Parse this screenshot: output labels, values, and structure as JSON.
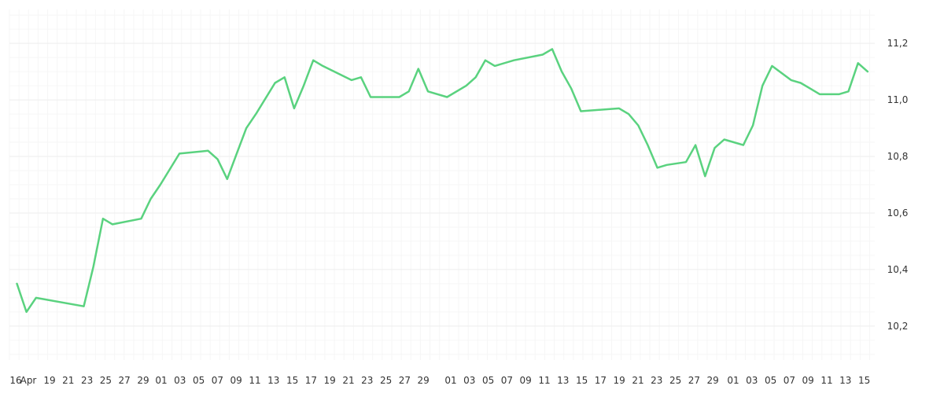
{
  "chart_data": {
    "type": "line",
    "title": "",
    "xlabel": "",
    "ylabel": "",
    "ylim": [
      10.08,
      11.32
    ],
    "grid": true,
    "legend": "none",
    "y_axis_side": "right",
    "line_color": "#5ad27f",
    "x_tick_labels": [
      "16",
      "Apr",
      "19",
      "21",
      "23",
      "25",
      "27",
      "29",
      "01",
      "03",
      "05",
      "07",
      "09",
      "11",
      "13",
      "15",
      "17",
      "19",
      "21",
      "23",
      "25",
      "27",
      "29",
      "01",
      "03",
      "05",
      "07",
      "09",
      "11",
      "13",
      "15",
      "17",
      "19",
      "21",
      "23",
      "25",
      "27",
      "29",
      "01",
      "03",
      "05",
      "07",
      "09",
      "11",
      "13",
      "15"
    ],
    "y_ticks": [
      10.2,
      10.4,
      10.6,
      10.8,
      11.0,
      11.2
    ],
    "y_tick_labels": [
      "10,2",
      "10,4",
      "10,6",
      "10,8",
      "11,0",
      "11,2"
    ],
    "series": [
      {
        "x": [
          0,
          1,
          2,
          7,
          8,
          9,
          10,
          13,
          14,
          15,
          17,
          20,
          21,
          22,
          23,
          24,
          25,
          27,
          28,
          29,
          30,
          31,
          32,
          35,
          36,
          37,
          40,
          41,
          42,
          43,
          45,
          47,
          48,
          49,
          50,
          52,
          55,
          56,
          57,
          58,
          59,
          63,
          64,
          65,
          66,
          67,
          68,
          70,
          71,
          72,
          73,
          74,
          75,
          76,
          77,
          78,
          79,
          81,
          82,
          83,
          84,
          86,
          87,
          88,
          89,
          90,
          91,
          92,
          93,
          94
        ],
        "y": [
          10.35,
          10.25,
          10.3,
          10.27,
          10.41,
          10.58,
          10.56,
          10.58,
          10.65,
          10.7,
          10.81,
          10.82,
          10.79,
          10.72,
          10.81,
          10.9,
          10.95,
          11.06,
          11.08,
          10.97,
          11.05,
          11.14,
          11.12,
          11.07,
          11.08,
          11.01,
          11.01,
          11.03,
          11.11,
          11.03,
          11.01,
          11.05,
          11.08,
          11.14,
          11.12,
          11.14,
          11.16,
          11.18,
          11.1,
          11.04,
          10.96,
          10.97,
          10.95,
          10.91,
          10.84,
          10.76,
          10.77,
          10.78,
          10.84,
          10.73,
          10.83,
          10.86,
          10.85,
          10.84,
          10.91,
          11.05,
          11.12,
          11.07,
          11.06,
          11.04,
          11.02,
          11.02,
          11.03,
          11.13,
          11.1,
          11.1,
          11.1,
          11.1,
          11.1,
          11.1
        ]
      }
    ]
  }
}
